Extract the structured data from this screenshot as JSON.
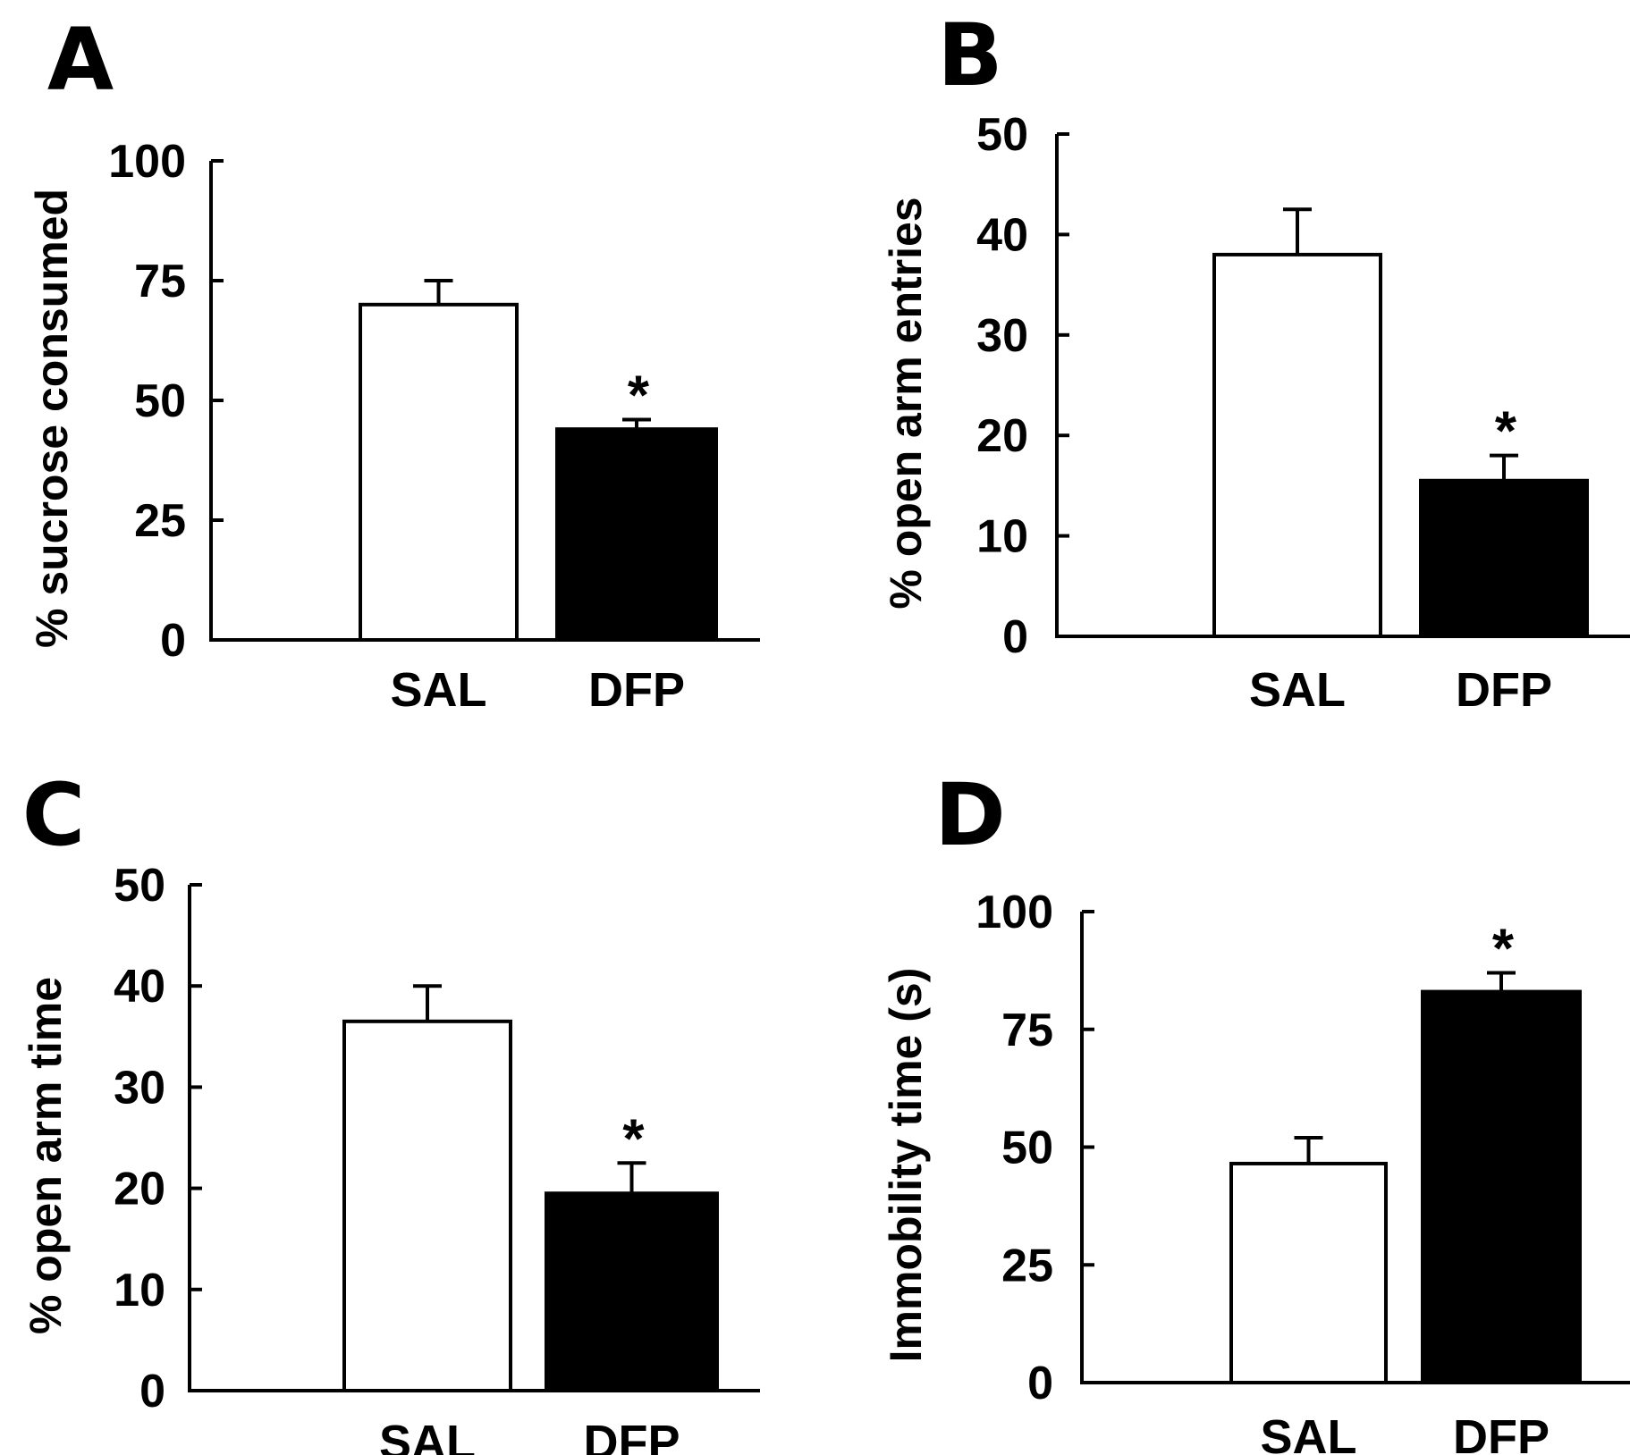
{
  "chart_data": [
    {
      "type": "bar",
      "panel": "A",
      "title": "",
      "xlabel": "",
      "ylabel": "% sucrose consumed",
      "categories": [
        "SAL",
        "DFP"
      ],
      "values": [
        70,
        44
      ],
      "errors": [
        5,
        2
      ],
      "fills": [
        "#ffffff",
        "#000000"
      ],
      "significance": [
        "",
        "*"
      ],
      "ylim": [
        0,
        100
      ],
      "yticks": [
        0,
        25,
        50,
        75,
        100
      ],
      "grid": false
    },
    {
      "type": "bar",
      "panel": "B",
      "title": "",
      "xlabel": "",
      "ylabel": "% open arm entries",
      "categories": [
        "SAL",
        "DFP"
      ],
      "values": [
        38,
        15.5
      ],
      "errors": [
        4.5,
        2.5
      ],
      "fills": [
        "#ffffff",
        "#000000"
      ],
      "significance": [
        "",
        "*"
      ],
      "ylim": [
        0,
        50
      ],
      "yticks": [
        0,
        10,
        20,
        30,
        40,
        50
      ],
      "grid": false
    },
    {
      "type": "bar",
      "panel": "C",
      "title": "",
      "xlabel": "",
      "ylabel": "% open arm time",
      "categories": [
        "SAL",
        "DFP"
      ],
      "values": [
        36.5,
        19.5
      ],
      "errors": [
        3.5,
        3
      ],
      "fills": [
        "#ffffff",
        "#000000"
      ],
      "significance": [
        "",
        "*"
      ],
      "ylim": [
        0,
        50
      ],
      "yticks": [
        0,
        10,
        20,
        30,
        40,
        50
      ],
      "grid": false
    },
    {
      "type": "bar",
      "panel": "D",
      "title": "",
      "xlabel": "",
      "ylabel": "Immobility time (s)",
      "categories": [
        "SAL",
        "DFP"
      ],
      "values": [
        46.5,
        83
      ],
      "errors": [
        5.5,
        4
      ],
      "fills": [
        "#ffffff",
        "#000000"
      ],
      "significance": [
        "",
        "*"
      ],
      "ylim": [
        0,
        100
      ],
      "yticks": [
        0,
        25,
        50,
        75,
        100
      ],
      "grid": false
    }
  ]
}
